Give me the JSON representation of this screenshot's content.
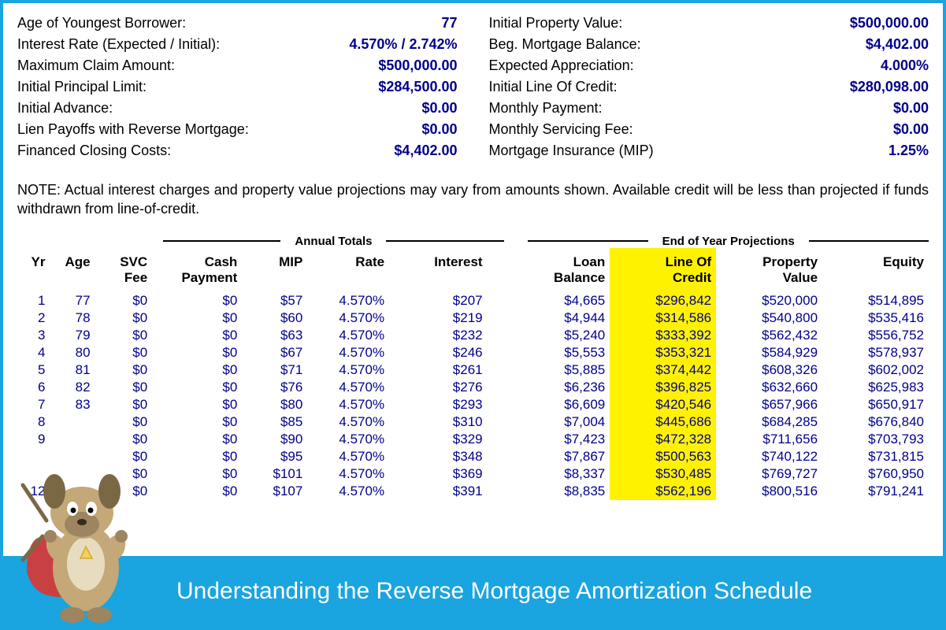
{
  "colors": {
    "frame_border": "#1aa4e0",
    "value_text": "#00008b",
    "highlight": "#fff200",
    "banner_bg": "#1aa4e0",
    "banner_text": "#ffffff",
    "mascot_body": "#c4a878",
    "mascot_cape": "#c94040",
    "mascot_badge": "#f0d060"
  },
  "summary": {
    "left": [
      {
        "label": "Age of Youngest Borrower:",
        "value": "77"
      },
      {
        "label": "Interest Rate (Expected / Initial):",
        "value": "4.570%  /  2.742%"
      },
      {
        "label": "Maximum Claim Amount:",
        "value": "$500,000.00"
      },
      {
        "label": "Initial Principal Limit:",
        "value": "$284,500.00"
      },
      {
        "label": "Initial Advance:",
        "value": "$0.00"
      },
      {
        "label": "Lien Payoffs with Reverse Mortgage:",
        "value": "$0.00"
      },
      {
        "label": "Financed Closing Costs:",
        "value": "$4,402.00"
      }
    ],
    "right": [
      {
        "label": "Initial Property Value:",
        "value": "$500,000.00"
      },
      {
        "label": "Beg. Mortgage Balance:",
        "value": "$4,402.00"
      },
      {
        "label": "Expected Appreciation:",
        "value": "4.000%"
      },
      {
        "label": "Initial Line Of Credit:",
        "value": "$280,098.00"
      },
      {
        "label": "Monthly Payment:",
        "value": "$0.00"
      },
      {
        "label": "Monthly Servicing Fee:",
        "value": "$0.00"
      },
      {
        "label": "Mortgage Insurance (MIP)",
        "value": "1.25%"
      }
    ]
  },
  "note": "NOTE: Actual interest charges and property value projections may vary from amounts shown. Available credit will be less than projected if funds withdrawn from line-of-credit.",
  "group_headers": {
    "annual": "Annual Totals",
    "eoy": "End of Year Projections"
  },
  "columns": {
    "yr": "Yr",
    "age": "Age",
    "svc": "SVC\nFee",
    "cash": "Cash\nPayment",
    "mip": "MIP",
    "rate": "Rate",
    "interest": "Interest",
    "loan": "Loan\nBalance",
    "loc": "Line Of\nCredit",
    "prop": "Property\nValue",
    "equity": "Equity"
  },
  "rows": [
    {
      "yr": "1",
      "age": "77",
      "svc": "$0",
      "cash": "$0",
      "mip": "$57",
      "rate": "4.570%",
      "int": "$207",
      "loan": "$4,665",
      "loc": "$296,842",
      "prop": "$520,000",
      "eq": "$514,895"
    },
    {
      "yr": "2",
      "age": "78",
      "svc": "$0",
      "cash": "$0",
      "mip": "$60",
      "rate": "4.570%",
      "int": "$219",
      "loan": "$4,944",
      "loc": "$314,586",
      "prop": "$540,800",
      "eq": "$535,416"
    },
    {
      "yr": "3",
      "age": "79",
      "svc": "$0",
      "cash": "$0",
      "mip": "$63",
      "rate": "4.570%",
      "int": "$232",
      "loan": "$5,240",
      "loc": "$333,392",
      "prop": "$562,432",
      "eq": "$556,752"
    },
    {
      "yr": "4",
      "age": "80",
      "svc": "$0",
      "cash": "$0",
      "mip": "$67",
      "rate": "4.570%",
      "int": "$246",
      "loan": "$5,553",
      "loc": "$353,321",
      "prop": "$584,929",
      "eq": "$578,937"
    },
    {
      "yr": "5",
      "age": "81",
      "svc": "$0",
      "cash": "$0",
      "mip": "$71",
      "rate": "4.570%",
      "int": "$261",
      "loan": "$5,885",
      "loc": "$374,442",
      "prop": "$608,326",
      "eq": "$602,002"
    },
    {
      "yr": "6",
      "age": "82",
      "svc": "$0",
      "cash": "$0",
      "mip": "$76",
      "rate": "4.570%",
      "int": "$276",
      "loan": "$6,236",
      "loc": "$396,825",
      "prop": "$632,660",
      "eq": "$625,983"
    },
    {
      "yr": "7",
      "age": "83",
      "svc": "$0",
      "cash": "$0",
      "mip": "$80",
      "rate": "4.570%",
      "int": "$293",
      "loan": "$6,609",
      "loc": "$420,546",
      "prop": "$657,966",
      "eq": "$650,917"
    },
    {
      "yr": "8",
      "age": "",
      "svc": "$0",
      "cash": "$0",
      "mip": "$85",
      "rate": "4.570%",
      "int": "$310",
      "loan": "$7,004",
      "loc": "$445,686",
      "prop": "$684,285",
      "eq": "$676,840"
    },
    {
      "yr": "9",
      "age": "",
      "svc": "$0",
      "cash": "$0",
      "mip": "$90",
      "rate": "4.570%",
      "int": "$329",
      "loan": "$7,423",
      "loc": "$472,328",
      "prop": "$711,656",
      "eq": "$703,793"
    },
    {
      "yr": "",
      "age": "",
      "svc": "$0",
      "cash": "$0",
      "mip": "$95",
      "rate": "4.570%",
      "int": "$348",
      "loan": "$7,867",
      "loc": "$500,563",
      "prop": "$740,122",
      "eq": "$731,815"
    },
    {
      "yr": "",
      "age": "",
      "svc": "$0",
      "cash": "$0",
      "mip": "$101",
      "rate": "4.570%",
      "int": "$369",
      "loan": "$8,337",
      "loc": "$530,485",
      "prop": "$769,727",
      "eq": "$760,950"
    },
    {
      "yr": "12",
      "age": "",
      "svc": "$0",
      "cash": "$0",
      "mip": "$107",
      "rate": "4.570%",
      "int": "$391",
      "loan": "$8,835",
      "loc": "$562,196",
      "prop": "$800,516",
      "eq": "$791,241"
    }
  ],
  "banner": {
    "text": "Understanding the Reverse Mortgage Amortization Schedule"
  }
}
